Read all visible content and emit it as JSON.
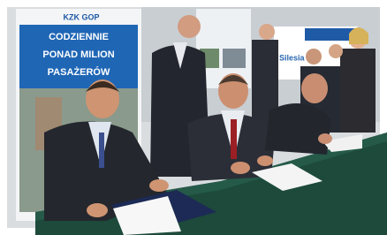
{
  "banner": {
    "brand": "KZK GOP",
    "slogan_lines": [
      "CODZIENNIE",
      "PONAD MILION",
      "PASAŻERÓW"
    ]
  },
  "poster_text": "Silesia"
}
